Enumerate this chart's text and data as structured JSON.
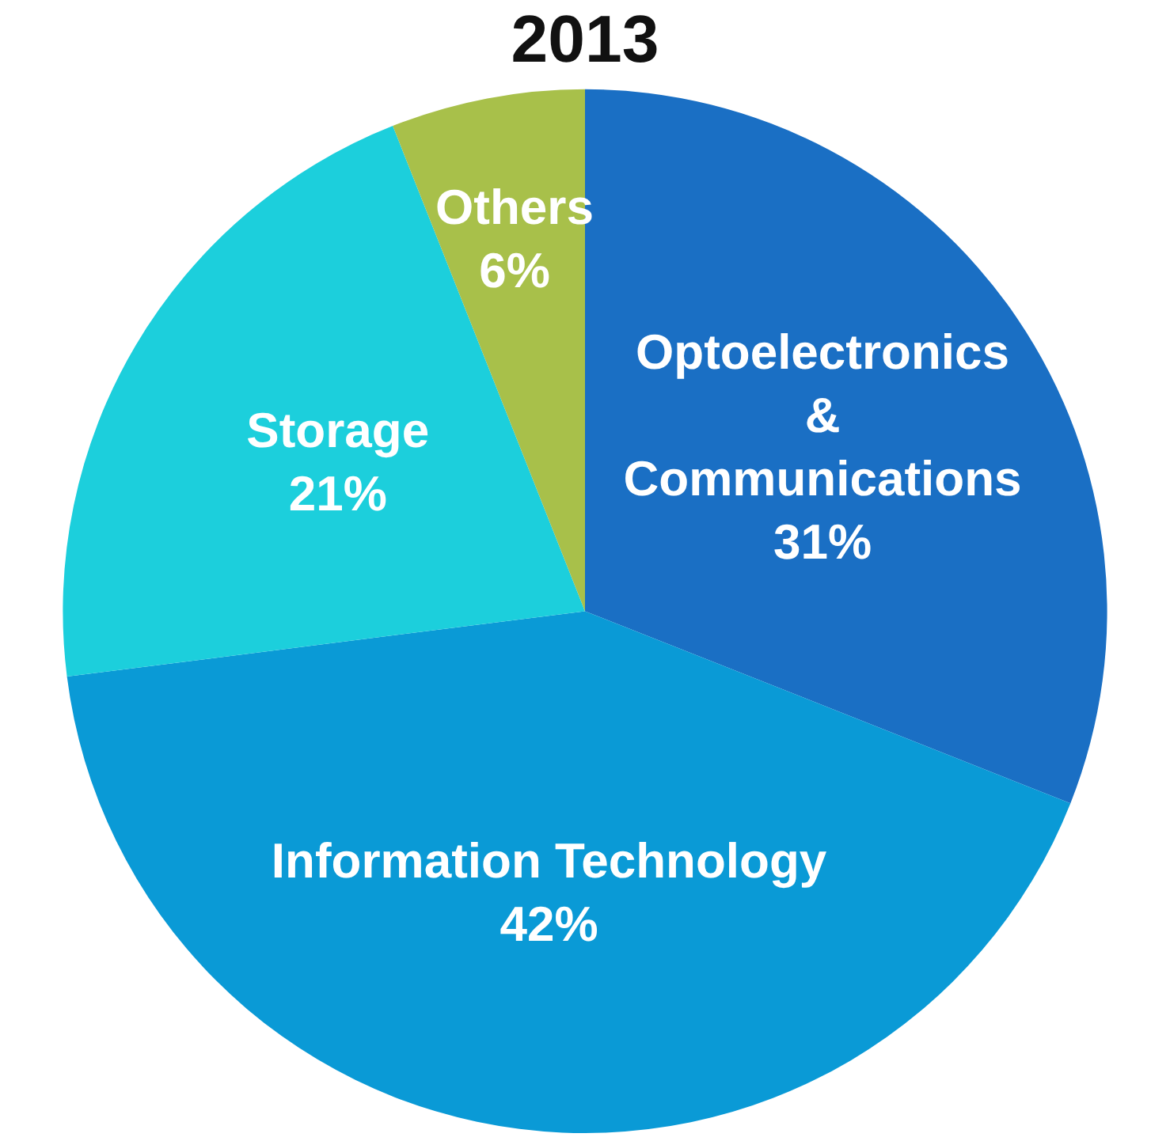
{
  "chart_data": {
    "type": "pie",
    "title": "2013",
    "categories": [
      "Optoelectronics\n&\nCommunications",
      "Information Technology",
      "Storage",
      "Others"
    ],
    "values": [
      31,
      42,
      21,
      6
    ],
    "value_labels": [
      "31%",
      "42%",
      "21%",
      "6%"
    ],
    "colors": [
      "#1a6fc4",
      "#0a9ad6",
      "#1ccfdc",
      "#a8c04a"
    ],
    "legend": false
  }
}
